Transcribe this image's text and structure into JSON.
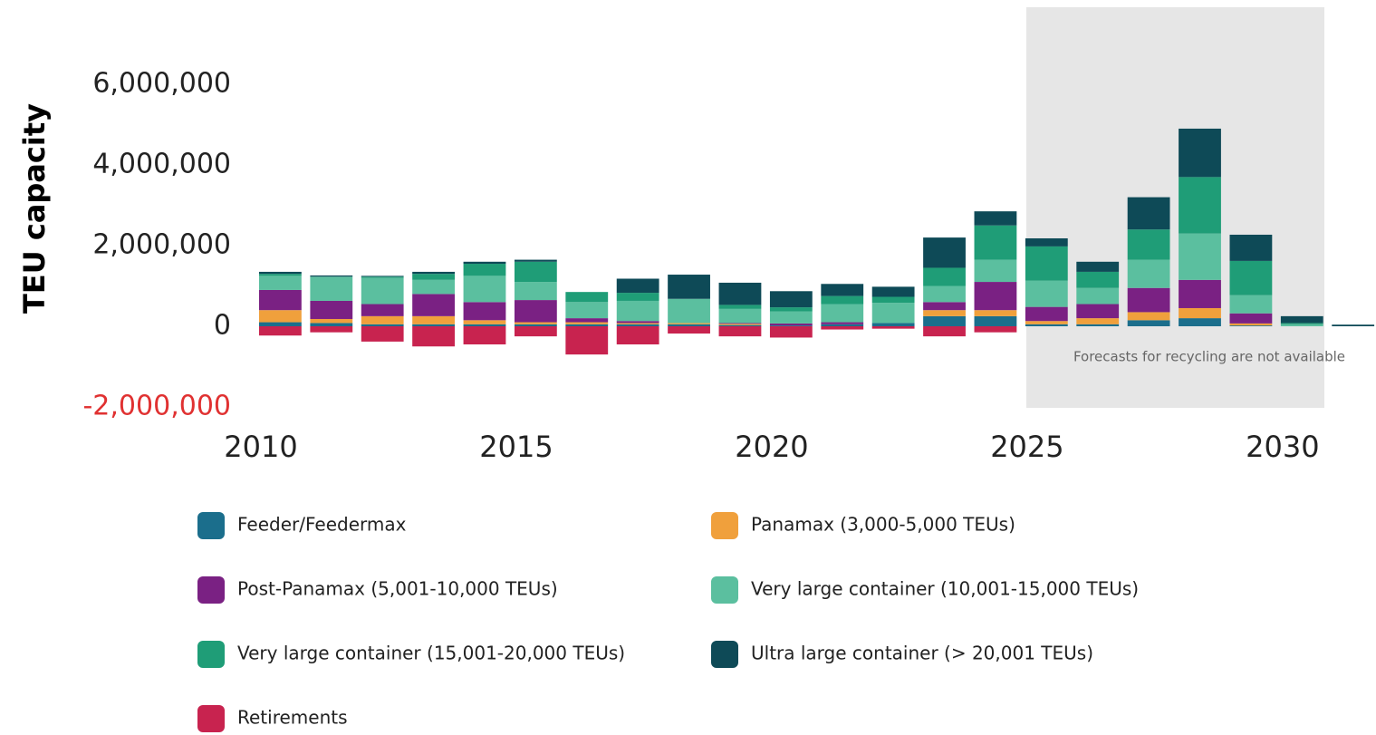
{
  "chart_data": {
    "type": "stacked_bar",
    "y_axis_label": "TEU capacity",
    "annotation": "Forecasts for recycling are not available",
    "x": [
      2010,
      2011,
      2012,
      2013,
      2014,
      2015,
      2016,
      2017,
      2018,
      2019,
      2020,
      2021,
      2022,
      2023,
      2024,
      2025,
      2026,
      2027,
      2028,
      2029,
      2030,
      2031
    ],
    "xlim": [
      2009.5,
      2031.8
    ],
    "xticks": [
      2010,
      2015,
      2020,
      2025,
      2030
    ],
    "ylim": [
      -2000000,
      6000000
    ],
    "yticks": [
      {
        "value": -2000000,
        "label": "-2,000,000",
        "color": "#e03131"
      },
      {
        "value": 0,
        "label": "0"
      },
      {
        "value": 2000000,
        "label": "2,000,000"
      },
      {
        "value": 4000000,
        "label": "4,000,000"
      },
      {
        "value": 6000000,
        "label": "6,000,000"
      }
    ],
    "grid": false,
    "series": [
      {
        "name": "Feeder/Feedermax",
        "color": "#1b6e8c",
        "values": [
          100000,
          80000,
          50000,
          50000,
          50000,
          50000,
          50000,
          50000,
          50000,
          30000,
          20000,
          50000,
          80000,
          250000,
          250000,
          50000,
          50000,
          150000,
          200000,
          20000,
          0,
          0
        ]
      },
      {
        "name": "Panamax (3,000-5,000 TEUs)",
        "color": "#f0a03c",
        "values": [
          300000,
          100000,
          200000,
          200000,
          100000,
          50000,
          50000,
          30000,
          30000,
          30000,
          0,
          0,
          0,
          150000,
          150000,
          80000,
          150000,
          200000,
          250000,
          50000,
          0,
          0
        ]
      },
      {
        "name": "Post-Panamax (5,001-10,000 TEUs)",
        "color": "#7a2183",
        "values": [
          500000,
          450000,
          300000,
          550000,
          450000,
          550000,
          100000,
          50000,
          0,
          20000,
          50000,
          50000,
          0,
          200000,
          700000,
          350000,
          350000,
          600000,
          700000,
          250000,
          0,
          0
        ]
      },
      {
        "name": "Very large container (10,001-15,000 TEUs)",
        "color": "#5bbf9f",
        "values": [
          350000,
          600000,
          650000,
          350000,
          650000,
          450000,
          400000,
          500000,
          600000,
          350000,
          300000,
          450000,
          500000,
          400000,
          550000,
          650000,
          400000,
          700000,
          1150000,
          450000,
          50000,
          0
        ]
      },
      {
        "name": "Very large container (15,001-20,000 TEUs)",
        "color": "#1f9d77",
        "values": [
          50000,
          0,
          30000,
          150000,
          300000,
          500000,
          250000,
          200000,
          0,
          100000,
          100000,
          200000,
          150000,
          450000,
          850000,
          850000,
          400000,
          750000,
          1400000,
          850000,
          30000,
          0
        ]
      },
      {
        "name": "Ultra large container (> 20,001 TEUs)",
        "color": "#0e4a57",
        "values": [
          50000,
          30000,
          20000,
          50000,
          50000,
          50000,
          0,
          350000,
          600000,
          550000,
          400000,
          300000,
          250000,
          750000,
          350000,
          200000,
          250000,
          800000,
          1200000,
          650000,
          170000,
          40000
        ]
      },
      {
        "name": "Retirements",
        "color": "#c8234f",
        "values": [
          -230000,
          -150000,
          -380000,
          -500000,
          -450000,
          -250000,
          -700000,
          -450000,
          -180000,
          -250000,
          -280000,
          -80000,
          -60000,
          -250000,
          -150000,
          null,
          null,
          null,
          null,
          null,
          null,
          null
        ]
      }
    ]
  }
}
